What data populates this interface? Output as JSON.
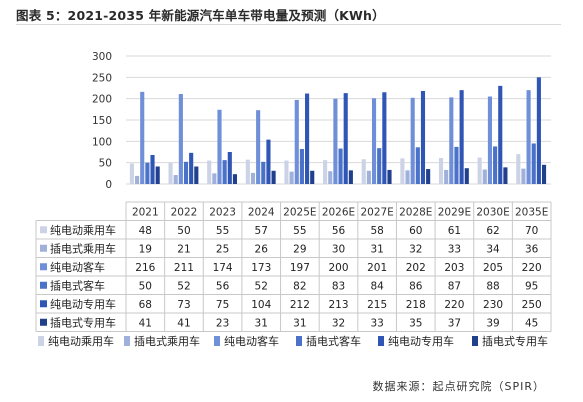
{
  "title": "图表 5：2021-2035 年新能源汽车单车带电量及预测（KWh）",
  "source": "数据来源：起点研究院（SPIR）",
  "chart_data": {
    "type": "bar",
    "categories": [
      "2021",
      "2022",
      "2023",
      "2024",
      "2025E",
      "2026E",
      "2027E",
      "2028E",
      "2029E",
      "2030E",
      "2035E"
    ],
    "ylim": [
      0,
      300
    ],
    "yticks": [
      0,
      50,
      100,
      150,
      200,
      250,
      300
    ],
    "grid": true,
    "legend": "bottom",
    "series": [
      {
        "name": "纯电动乘用车",
        "color": "#cdd3e6",
        "values": [
          48,
          50,
          55,
          57,
          55,
          56,
          58,
          60,
          61,
          62,
          70
        ]
      },
      {
        "name": "插电式乘用车",
        "color": "#9fb1db",
        "values": [
          19,
          21,
          25,
          26,
          29,
          30,
          31,
          32,
          33,
          34,
          36
        ]
      },
      {
        "name": "纯电动客车",
        "color": "#6f8fd8",
        "values": [
          216,
          211,
          174,
          173,
          197,
          200,
          201,
          202,
          203,
          205,
          220
        ]
      },
      {
        "name": "插电式客车",
        "color": "#4a72c9",
        "values": [
          50,
          52,
          56,
          52,
          82,
          83,
          84,
          86,
          87,
          88,
          95
        ]
      },
      {
        "name": "纯电动专用车",
        "color": "#2f55b5",
        "values": [
          68,
          73,
          75,
          104,
          212,
          213,
          215,
          218,
          220,
          230,
          250
        ]
      },
      {
        "name": "插电式专用车",
        "color": "#203f8c",
        "values": [
          41,
          41,
          23,
          31,
          31,
          32,
          33,
          35,
          37,
          39,
          45
        ]
      }
    ]
  }
}
